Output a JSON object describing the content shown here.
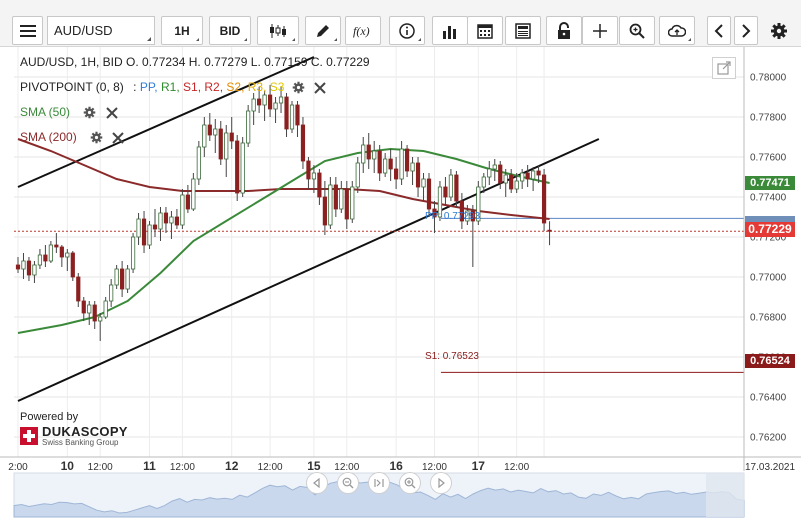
{
  "toolbar": {
    "symbol": "AUD/USD",
    "timeframe": "1H",
    "price_side": "BID"
  },
  "legend": {
    "ohlc": "AUD/USD, 1H, BID   O. 0.77234 H. 0.77279 L. 0.77159 C. 0.77229",
    "pivot": {
      "label": "PIVOTPOINT (0, 8)",
      "sep": ":",
      "pp": "PP,",
      "r1": "R1,",
      "s1": "S1,",
      "r2": "R2,",
      "s2": "S2,",
      "r3": "R3,",
      "s3": "S3",
      "colors": {
        "pp": "#2f7bd6",
        "r1": "#2e8b2e",
        "s1": "#c62828",
        "r2": "#c62828",
        "s2": "#e08a00",
        "r3": "#e0b000",
        "s3": "#e0c800"
      }
    },
    "sma50": {
      "label": "SMA (50)",
      "color": "#3a8a3a"
    },
    "sma200": {
      "label": "SMA (200)",
      "color": "#8b2a2a"
    }
  },
  "price_axis": {
    "ticks": [
      "0.78000",
      "0.77800",
      "0.77600",
      "0.77400",
      "0.77200",
      "0.77000",
      "0.76800",
      "0.76600",
      "0.76400",
      "0.76200"
    ]
  },
  "price_tags": [
    {
      "label": "0.77471",
      "color": "#3a8a3a"
    },
    {
      "label": "0.77229",
      "color": "#e53935"
    },
    {
      "label": "0.76524",
      "color": "#8b1a1a"
    }
  ],
  "line_labels": {
    "pp": "PP: 0.77293",
    "s1": "S1: 0.76523"
  },
  "time_axis": {
    "labels": [
      "2:00",
      "10",
      "12:00",
      "11",
      "12:00",
      "12",
      "12:00",
      "15",
      "12:00",
      "16",
      "12:00",
      "17",
      "12:00",
      "17.03.2021"
    ]
  },
  "branding": {
    "powered_by": "Powered by",
    "name": "DUKASCOPY",
    "tagline": "Swiss Banking Group",
    "brand_color": "#c8102e"
  },
  "chart_data": {
    "type": "candlestick",
    "title": "AUD/USD, 1H, BID",
    "ylim": [
      0.761,
      0.7815
    ],
    "x_range": [
      0,
      106
    ],
    "candles": [
      [
        0.7706,
        0.771,
        0.7702,
        0.7704
      ],
      [
        0.7704,
        0.7712,
        0.7699,
        0.7708
      ],
      [
        0.7708,
        0.771,
        0.7698,
        0.7701
      ],
      [
        0.7701,
        0.7708,
        0.7697,
        0.7706
      ],
      [
        0.7706,
        0.7714,
        0.7704,
        0.7711
      ],
      [
        0.7711,
        0.7716,
        0.7705,
        0.7708
      ],
      [
        0.7708,
        0.7718,
        0.7707,
        0.7716
      ],
      [
        0.7716,
        0.7722,
        0.7712,
        0.7715
      ],
      [
        0.7715,
        0.7716,
        0.7705,
        0.771
      ],
      [
        0.771,
        0.7714,
        0.7703,
        0.7712
      ],
      [
        0.7712,
        0.7713,
        0.7698,
        0.77
      ],
      [
        0.77,
        0.7702,
        0.7685,
        0.7688
      ],
      [
        0.7688,
        0.769,
        0.7678,
        0.7682
      ],
      [
        0.7682,
        0.7688,
        0.7676,
        0.7686
      ],
      [
        0.7686,
        0.7688,
        0.7674,
        0.7678
      ],
      [
        0.7678,
        0.7682,
        0.7668,
        0.768
      ],
      [
        0.768,
        0.769,
        0.7679,
        0.7688
      ],
      [
        0.7688,
        0.7699,
        0.7685,
        0.7696
      ],
      [
        0.7696,
        0.7706,
        0.7694,
        0.7704
      ],
      [
        0.7704,
        0.7708,
        0.769,
        0.7694
      ],
      [
        0.7694,
        0.7706,
        0.7692,
        0.7704
      ],
      [
        0.7704,
        0.7722,
        0.7702,
        0.772
      ],
      [
        0.772,
        0.7732,
        0.7716,
        0.7729
      ],
      [
        0.7729,
        0.7733,
        0.7712,
        0.7716
      ],
      [
        0.7716,
        0.7728,
        0.7714,
        0.7726
      ],
      [
        0.7726,
        0.7734,
        0.772,
        0.7724
      ],
      [
        0.7724,
        0.7735,
        0.7718,
        0.7732
      ],
      [
        0.7732,
        0.7735,
        0.7722,
        0.7727
      ],
      [
        0.7727,
        0.7733,
        0.7719,
        0.773
      ],
      [
        0.773,
        0.7734,
        0.7724,
        0.7726
      ],
      [
        0.7726,
        0.7744,
        0.7724,
        0.7741
      ],
      [
        0.7741,
        0.7746,
        0.7732,
        0.7734
      ],
      [
        0.7734,
        0.7752,
        0.7733,
        0.7749
      ],
      [
        0.7749,
        0.7768,
        0.7746,
        0.7765
      ],
      [
        0.7765,
        0.778,
        0.776,
        0.7776
      ],
      [
        0.7776,
        0.7782,
        0.7768,
        0.7771
      ],
      [
        0.7771,
        0.7779,
        0.7762,
        0.7774
      ],
      [
        0.7774,
        0.7778,
        0.7756,
        0.7759
      ],
      [
        0.7759,
        0.7776,
        0.775,
        0.7772
      ],
      [
        0.7772,
        0.778,
        0.7764,
        0.7768
      ],
      [
        0.7768,
        0.7771,
        0.7738,
        0.7742
      ],
      [
        0.7742,
        0.777,
        0.774,
        0.7767
      ],
      [
        0.7767,
        0.7786,
        0.7765,
        0.7783
      ],
      [
        0.7783,
        0.7792,
        0.7776,
        0.7789
      ],
      [
        0.7789,
        0.7795,
        0.7782,
        0.7786
      ],
      [
        0.7786,
        0.7793,
        0.7778,
        0.7791
      ],
      [
        0.7791,
        0.7796,
        0.778,
        0.7784
      ],
      [
        0.7784,
        0.779,
        0.7777,
        0.7787
      ],
      [
        0.7787,
        0.7795,
        0.7782,
        0.779
      ],
      [
        0.779,
        0.7792,
        0.777,
        0.7774
      ],
      [
        0.7774,
        0.7788,
        0.7772,
        0.7786
      ],
      [
        0.7786,
        0.7788,
        0.777,
        0.7776
      ],
      [
        0.7776,
        0.778,
        0.7754,
        0.7758
      ],
      [
        0.7758,
        0.776,
        0.7744,
        0.7749
      ],
      [
        0.7749,
        0.7756,
        0.7742,
        0.7752
      ],
      [
        0.7752,
        0.7754,
        0.7736,
        0.774
      ],
      [
        0.774,
        0.7748,
        0.7721,
        0.7726
      ],
      [
        0.7726,
        0.775,
        0.7724,
        0.7746
      ],
      [
        0.7746,
        0.775,
        0.773,
        0.7734
      ],
      [
        0.7734,
        0.7748,
        0.7732,
        0.7744
      ],
      [
        0.7744,
        0.7748,
        0.7724,
        0.7729
      ],
      [
        0.7729,
        0.7748,
        0.7727,
        0.7745
      ],
      [
        0.7745,
        0.776,
        0.7742,
        0.7757
      ],
      [
        0.7757,
        0.777,
        0.7752,
        0.7766
      ],
      [
        0.7766,
        0.7772,
        0.7754,
        0.7759
      ],
      [
        0.7759,
        0.7768,
        0.7752,
        0.7763
      ],
      [
        0.7763,
        0.7766,
        0.7748,
        0.7752
      ],
      [
        0.7752,
        0.7762,
        0.775,
        0.7759
      ],
      [
        0.7759,
        0.7764,
        0.7748,
        0.7754
      ],
      [
        0.7754,
        0.776,
        0.7744,
        0.7749
      ],
      [
        0.7749,
        0.7768,
        0.7746,
        0.7764
      ],
      [
        0.7764,
        0.7766,
        0.775,
        0.7753
      ],
      [
        0.7753,
        0.776,
        0.7746,
        0.7757
      ],
      [
        0.7757,
        0.776,
        0.774,
        0.7745
      ],
      [
        0.7745,
        0.7752,
        0.7738,
        0.7749
      ],
      [
        0.7749,
        0.7752,
        0.773,
        0.7734
      ],
      [
        0.7734,
        0.7738,
        0.7722,
        0.773
      ],
      [
        0.773,
        0.7748,
        0.7728,
        0.7745
      ],
      [
        0.7745,
        0.775,
        0.7736,
        0.774
      ],
      [
        0.774,
        0.7754,
        0.7738,
        0.7751
      ],
      [
        0.7751,
        0.7753,
        0.7735,
        0.7738
      ],
      [
        0.7738,
        0.7742,
        0.7724,
        0.7728
      ],
      [
        0.7728,
        0.7736,
        0.7726,
        0.7733
      ],
      [
        0.7733,
        0.7736,
        0.7705,
        0.7728
      ],
      [
        0.7728,
        0.7748,
        0.7726,
        0.7745
      ],
      [
        0.7745,
        0.7752,
        0.7742,
        0.775
      ],
      [
        0.775,
        0.7758,
        0.7746,
        0.7754
      ],
      [
        0.7754,
        0.7759,
        0.7748,
        0.7756
      ],
      [
        0.7756,
        0.7758,
        0.7744,
        0.7747
      ],
      [
        0.7747,
        0.7754,
        0.774,
        0.7751
      ],
      [
        0.7751,
        0.7754,
        0.7742,
        0.7744
      ],
      [
        0.7744,
        0.7752,
        0.7742,
        0.7748
      ],
      [
        0.7748,
        0.7754,
        0.7744,
        0.7752
      ],
      [
        0.7752,
        0.7756,
        0.7745,
        0.7749
      ],
      [
        0.7749,
        0.7755,
        0.7743,
        0.7753
      ],
      [
        0.7753,
        0.7756,
        0.7747,
        0.7751
      ],
      [
        0.7751,
        0.7754,
        0.7723,
        0.7727
      ],
      [
        0.77234,
        0.77279,
        0.77159,
        0.77229
      ]
    ],
    "sma50": [
      [
        0,
        0.7672
      ],
      [
        8,
        0.7676
      ],
      [
        14,
        0.768
      ],
      [
        20,
        0.7688
      ],
      [
        26,
        0.7702
      ],
      [
        32,
        0.7718
      ],
      [
        38,
        0.7728
      ],
      [
        44,
        0.7738
      ],
      [
        50,
        0.7748
      ],
      [
        56,
        0.7758
      ],
      [
        62,
        0.7762
      ],
      [
        68,
        0.7764
      ],
      [
        74,
        0.7763
      ],
      [
        80,
        0.7759
      ],
      [
        86,
        0.7754
      ],
      [
        92,
        0.775
      ],
      [
        97,
        0.7747
      ]
    ],
    "sma200": [
      [
        0,
        0.7769
      ],
      [
        6,
        0.7763
      ],
      [
        12,
        0.7756
      ],
      [
        18,
        0.7749
      ],
      [
        24,
        0.7745
      ],
      [
        30,
        0.7743
      ],
      [
        36,
        0.7743
      ],
      [
        42,
        0.7743
      ],
      [
        48,
        0.7744
      ],
      [
        54,
        0.7744
      ],
      [
        60,
        0.7744
      ],
      [
        66,
        0.7743
      ],
      [
        72,
        0.7739
      ],
      [
        78,
        0.7736
      ],
      [
        84,
        0.7733
      ],
      [
        90,
        0.7731
      ],
      [
        97,
        0.7729
      ]
    ],
    "trendlines": [
      {
        "name": "channel-upper",
        "from": [
          0,
          0.7745
        ],
        "to": [
          54,
          0.781
        ]
      },
      {
        "name": "channel-lower",
        "from": [
          0,
          0.7638
        ],
        "to": [
          106,
          0.7769
        ]
      }
    ],
    "pivot_lines": [
      {
        "name": "pp",
        "value": 0.77293,
        "from_x": 52
      },
      {
        "name": "s1",
        "value": 0.76523,
        "from_x": 52
      }
    ],
    "last_price": 0.77229,
    "sma50_last": 0.77471,
    "x_tick_index": [
      0,
      9,
      15,
      24,
      30,
      39,
      46,
      54,
      60,
      69,
      76,
      84,
      91,
      96
    ]
  }
}
